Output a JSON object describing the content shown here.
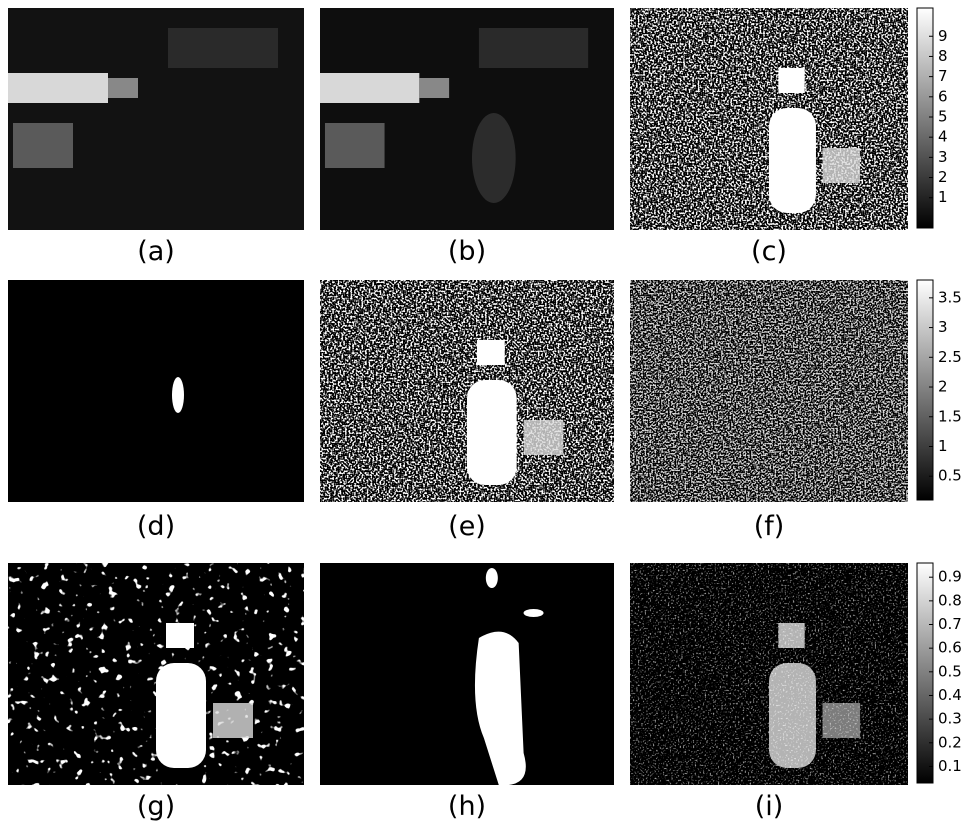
{
  "panels": [
    {
      "label": "(a)"
    },
    {
      "label": "(b)"
    },
    {
      "label": "(c)"
    },
    {
      "label": "(d)"
    },
    {
      "label": "(e)"
    },
    {
      "label": "(f)"
    },
    {
      "label": "(g)"
    },
    {
      "label": "(h)"
    },
    {
      "label": "(i)"
    }
  ],
  "colorbars": [
    {
      "ticks": [
        1,
        2,
        3,
        4,
        5,
        6,
        7,
        8,
        9
      ],
      "lim": [
        -0.5,
        10.4
      ]
    },
    {
      "ticks": [
        0.5,
        1,
        1.5,
        2,
        2.5,
        3,
        3.5
      ],
      "lim": [
        0.1,
        3.8
      ]
    },
    {
      "ticks": [
        0.1,
        0.2,
        0.3,
        0.4,
        0.5,
        0.6,
        0.7,
        0.8,
        0.9
      ],
      "lim": [
        0.03,
        0.96
      ]
    }
  ]
}
